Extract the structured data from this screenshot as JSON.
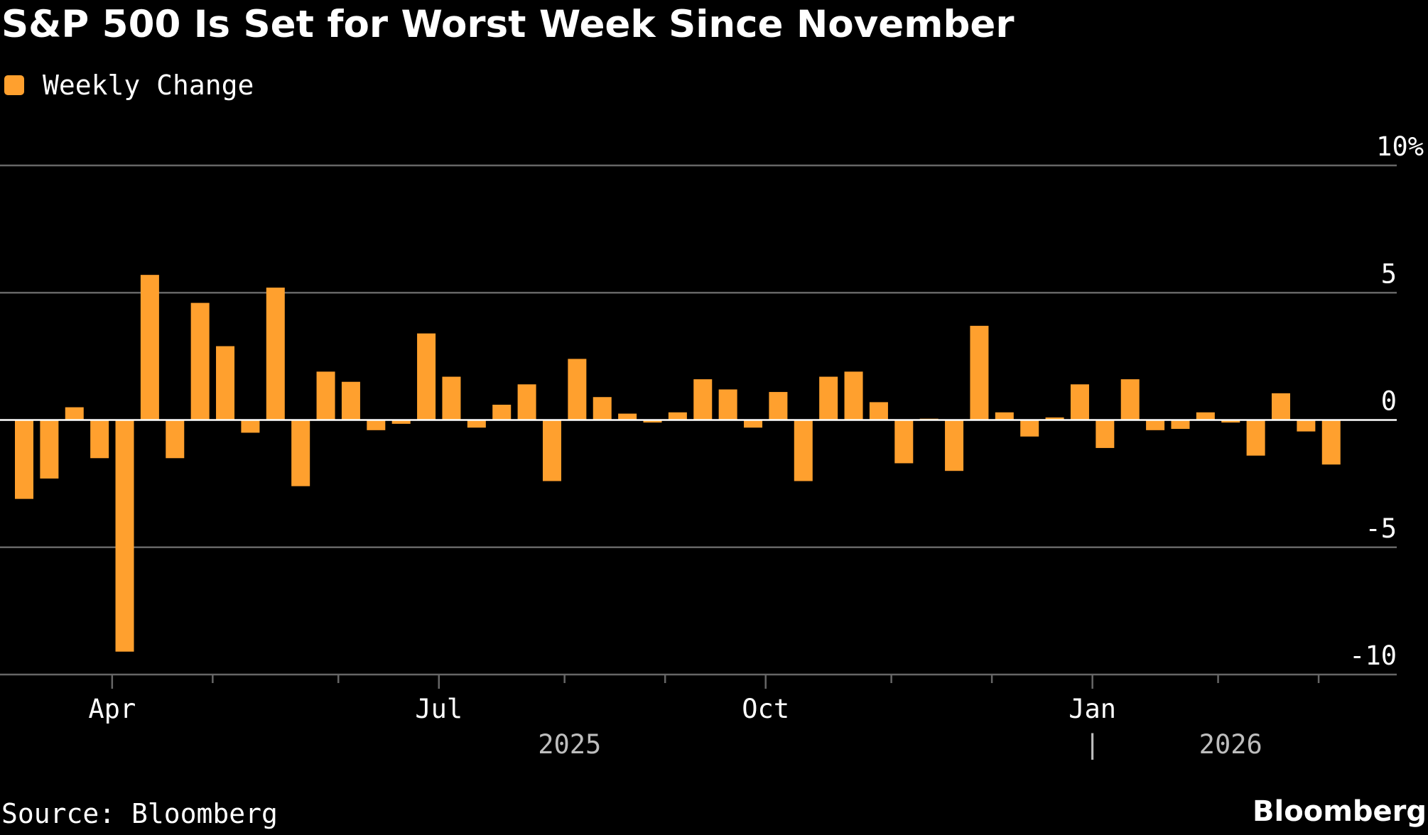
{
  "title": "S&P 500 Is Set for Worst Week Since November",
  "source": "Source: Bloomberg",
  "brand": "Bloomberg",
  "colors": {
    "background": "#000000",
    "bar": "#ffa02e",
    "grid": "#666666",
    "zero_line": "#ffffff",
    "text": "#ffffff",
    "year_text": "#bdbdbd"
  },
  "chart_data": {
    "type": "bar",
    "title": "S&P 500 Is Set for Worst Week Since November",
    "legend": [
      {
        "name": "Weekly Change",
        "color": "#ffa02e"
      }
    ],
    "ylim": [
      -10,
      10
    ],
    "y_ticks": [
      {
        "value": 10,
        "label": "10%"
      },
      {
        "value": 5,
        "label": "5"
      },
      {
        "value": 0,
        "label": "0"
      },
      {
        "value": -5,
        "label": "-5"
      },
      {
        "value": -10,
        "label": "-10"
      }
    ],
    "x_ticks": [
      {
        "index": 3.5,
        "label": "Apr"
      },
      {
        "index": 7.5,
        "label": ""
      },
      {
        "index": 12.5,
        "label": ""
      },
      {
        "index": 16.5,
        "label": "Jul"
      },
      {
        "index": 21.5,
        "label": ""
      },
      {
        "index": 25.5,
        "label": ""
      },
      {
        "index": 29.5,
        "label": "Oct"
      },
      {
        "index": 34.5,
        "label": ""
      },
      {
        "index": 38.5,
        "label": ""
      },
      {
        "index": 42.5,
        "label": "Jan"
      },
      {
        "index": 47.5,
        "label": ""
      },
      {
        "index": 51.5,
        "label": ""
      }
    ],
    "year_labels": [
      {
        "index": 21.7,
        "label": "2025"
      },
      {
        "index": 48.0,
        "label": "2026"
      }
    ],
    "year_separator": {
      "index": 42.5,
      "label": "|"
    },
    "series": [
      {
        "name": "Weekly Change",
        "values": [
          -3.1,
          -2.3,
          0.5,
          -1.5,
          -9.1,
          5.7,
          -1.5,
          4.6,
          2.9,
          -0.5,
          5.2,
          -2.6,
          1.9,
          1.5,
          -0.4,
          -0.15,
          3.4,
          1.7,
          -0.3,
          0.6,
          1.4,
          -2.4,
          2.4,
          0.9,
          0.25,
          -0.1,
          0.3,
          1.6,
          1.2,
          -0.3,
          1.1,
          -2.4,
          1.7,
          1.9,
          0.7,
          -1.7,
          0.05,
          -2.0,
          3.7,
          0.3,
          -0.65,
          0.1,
          1.4,
          -1.1,
          1.6,
          -0.4,
          -0.35,
          0.3,
          -0.1,
          -1.4,
          1.05,
          -0.45,
          -1.75
        ]
      }
    ]
  }
}
